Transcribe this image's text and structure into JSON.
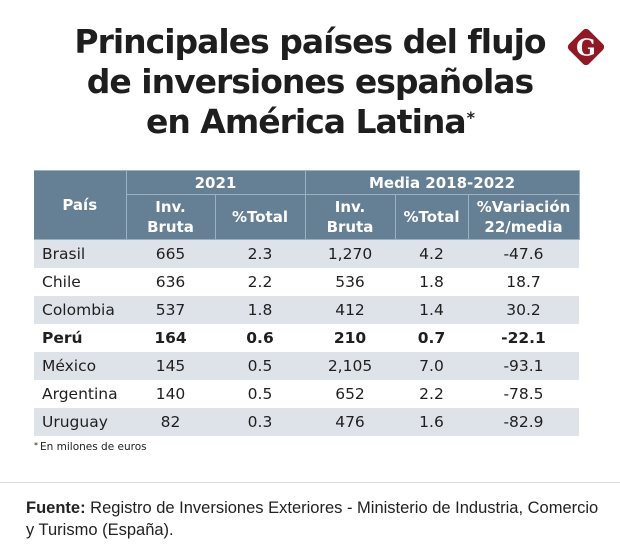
{
  "title": {
    "line1": "Principales países del flujo",
    "line2": "de inversiones españolas",
    "line3": "en América Latina",
    "asterisk": "*"
  },
  "logo": {
    "icon": "gestion-g-logo-icon",
    "letter": "G",
    "color": "#8f1a26"
  },
  "colors": {
    "header_bg": "#657f95",
    "alt_row_bg": "#dee3e9"
  },
  "chart_data": {
    "type": "table",
    "title": "Principales países del flujo de inversiones españolas en América Latina*",
    "group_headers": [
      {
        "label": "País"
      },
      {
        "label": "2021"
      },
      {
        "label": "Media 2018-2022"
      }
    ],
    "columns": [
      "Inv. Bruta",
      "%Total",
      "Inv. Bruta",
      "%Total",
      "%Variación 22/media"
    ],
    "column_lines": [
      [
        "Inv.",
        "Bruta"
      ],
      [
        "%Total"
      ],
      [
        "Inv.",
        "Bruta"
      ],
      [
        "%Total"
      ],
      [
        "%Variación",
        "22/media"
      ]
    ],
    "rows": [
      {
        "country": "Brasil",
        "inv_2021": "665",
        "pct_2021": "2.3",
        "inv_media": "1,270",
        "pct_media": "4.2",
        "variacion": "-47.6",
        "highlight": false
      },
      {
        "country": "Chile",
        "inv_2021": "636",
        "pct_2021": "2.2",
        "inv_media": "536",
        "pct_media": "1.8",
        "variacion": "18.7",
        "highlight": false
      },
      {
        "country": "Colombia",
        "inv_2021": "537",
        "pct_2021": "1.8",
        "inv_media": "412",
        "pct_media": "1.4",
        "variacion": "30.2",
        "highlight": false
      },
      {
        "country": "Perú",
        "inv_2021": "164",
        "pct_2021": "0.6",
        "inv_media": "210",
        "pct_media": "0.7",
        "variacion": "-22.1",
        "highlight": true
      },
      {
        "country": "México",
        "inv_2021": "145",
        "pct_2021": "0.5",
        "inv_media": "2,105",
        "pct_media": "7.0",
        "variacion": "-93.1",
        "highlight": false
      },
      {
        "country": "Argentina",
        "inv_2021": "140",
        "pct_2021": "0.5",
        "inv_media": "652",
        "pct_media": "2.2",
        "variacion": "-78.5",
        "highlight": false
      },
      {
        "country": "Uruguay",
        "inv_2021": "82",
        "pct_2021": "0.3",
        "inv_media": "476",
        "pct_media": "1.6",
        "variacion": "-82.9",
        "highlight": false
      }
    ],
    "units_note": "En milones de euros"
  },
  "footnote": {
    "marker": "*",
    "text": "En milones de euros"
  },
  "source": {
    "label": "Fuente:",
    "text": " Registro de Inversiones Exteriores - Ministerio de Industria, Comercio y Turismo (España)."
  }
}
